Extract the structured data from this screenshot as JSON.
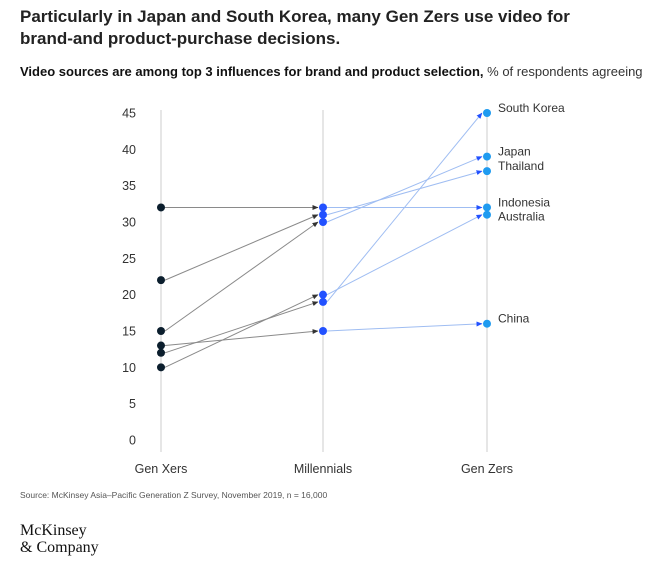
{
  "header": {
    "headline": "Particularly in Japan and South Korea, many Gen Zers use video for brand-and product-purchase decisions.",
    "subtitle_bold": "Video sources are among top 3 influences for brand and product selection,",
    "subtitle_unit": "% of respondents agreeing"
  },
  "footer": {
    "source": "Source: McKinsey Asia–Pacific Generation Z Survey, November 2019, n = 16,000",
    "logo_line1": "McKinsey",
    "logo_line2": "& Company"
  },
  "colors": {
    "gen_xers": "#0b1e2d",
    "millennials": "#2251ff",
    "gen_zers": "#1f9bf0",
    "line_x_to_m": "#8a8a8a",
    "line_m_to_z": "#9fbdf2",
    "axis": "#cccccc",
    "text": "#333333"
  },
  "chart_data": {
    "type": "slope",
    "categories": [
      "Gen Xers",
      "Millennials",
      "Gen Zers"
    ],
    "ylim": [
      0,
      45
    ],
    "yticks": [
      0,
      5,
      10,
      15,
      20,
      25,
      30,
      35,
      40,
      45
    ],
    "series": [
      {
        "name": "South Korea",
        "values": [
          12,
          19,
          45
        ]
      },
      {
        "name": "Japan",
        "values": [
          15,
          30,
          39
        ]
      },
      {
        "name": "Thailand",
        "values": [
          22,
          31,
          37
        ]
      },
      {
        "name": "Indonesia",
        "values": [
          32,
          32,
          32
        ]
      },
      {
        "name": "Australia",
        "values": [
          10,
          20,
          31
        ]
      },
      {
        "name": "China",
        "values": [
          13,
          15,
          16
        ]
      }
    ]
  }
}
